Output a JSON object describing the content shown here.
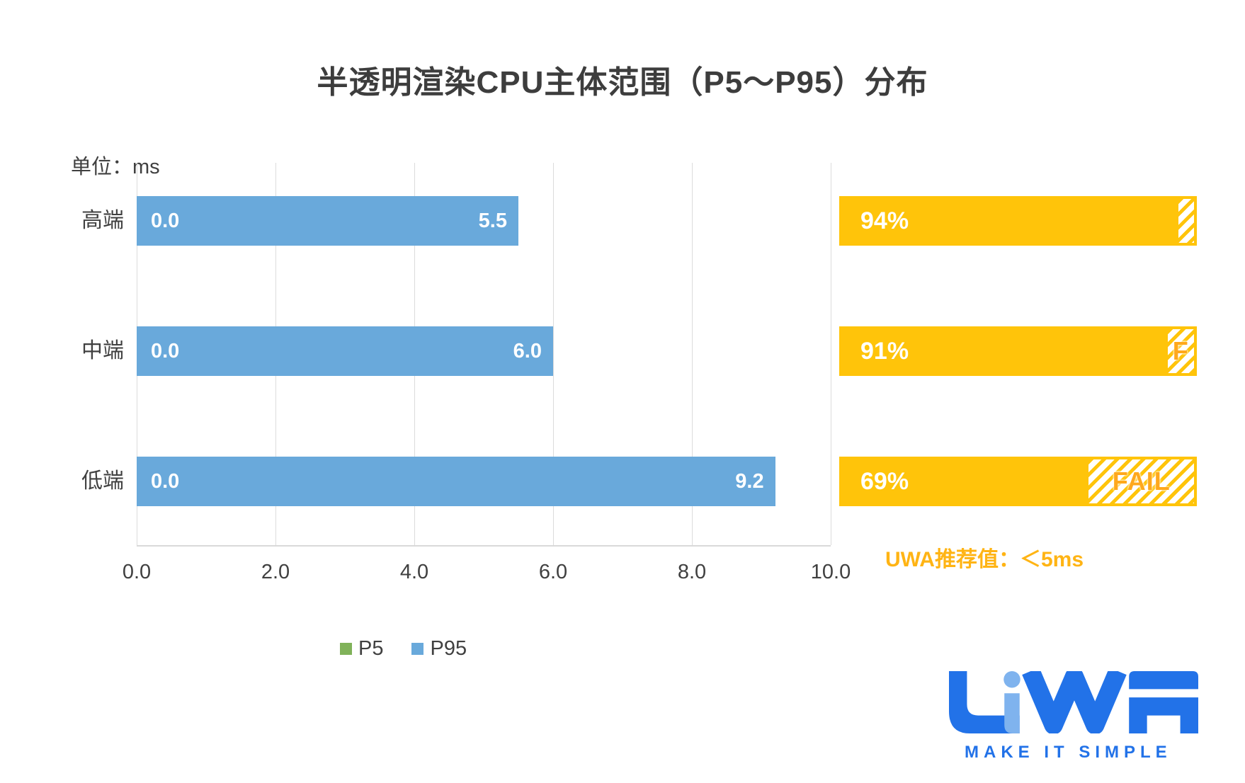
{
  "title": "半透明渲染CPU主体范围（P5～P95）分布",
  "unit_label": "单位：ms",
  "chart_data": {
    "type": "bar",
    "orientation": "horizontal",
    "title": "半透明渲染CPU主体范围（P5～P95）分布",
    "unit": "ms",
    "categories": [
      "高端",
      "中端",
      "低端"
    ],
    "series": [
      {
        "name": "P5",
        "color": "#80b259",
        "values": [
          0.0,
          0.0,
          0.0
        ]
      },
      {
        "name": "P95",
        "color": "#69a9db",
        "values": [
          5.5,
          6.0,
          9.2
        ]
      }
    ],
    "bar_value_labels": [
      [
        "0.0",
        "5.5"
      ],
      [
        "0.0",
        "6.0"
      ],
      [
        "0.0",
        "9.2"
      ]
    ],
    "xlim": [
      0,
      10
    ],
    "x_ticks": [
      "0.0",
      "2.0",
      "4.0",
      "6.0",
      "8.0",
      "10.0"
    ],
    "grid": "vertical",
    "legend_position": "bottom",
    "pass_rates": {
      "values_pct": [
        94,
        91,
        69
      ],
      "labels": [
        "94%",
        "91%",
        "69%"
      ],
      "fail_labels": [
        "",
        "F",
        "FAIL"
      ],
      "bar_color": "#ffc40a",
      "fail_text_color": "#ffa81c"
    },
    "recommendation": "UWA推荐值：＜5ms"
  },
  "legend": [
    {
      "label": "P5",
      "color": "#80b259"
    },
    {
      "label": "P95",
      "color": "#69a9db"
    }
  ],
  "footer_logo": {
    "brand": "UWA",
    "tagline": "MAKE IT SIMPLE",
    "color": "#2272e8",
    "light_color": "#7fb3ee"
  },
  "colors": {
    "title_text": "#3d3d3d",
    "axis_text": "#404040",
    "gridline": "#dcdcdc",
    "bar_blue": "#69a9db",
    "bar_yellow": "#ffc40a",
    "recommendation_text": "#ffb414",
    "background": "#ffffff"
  }
}
